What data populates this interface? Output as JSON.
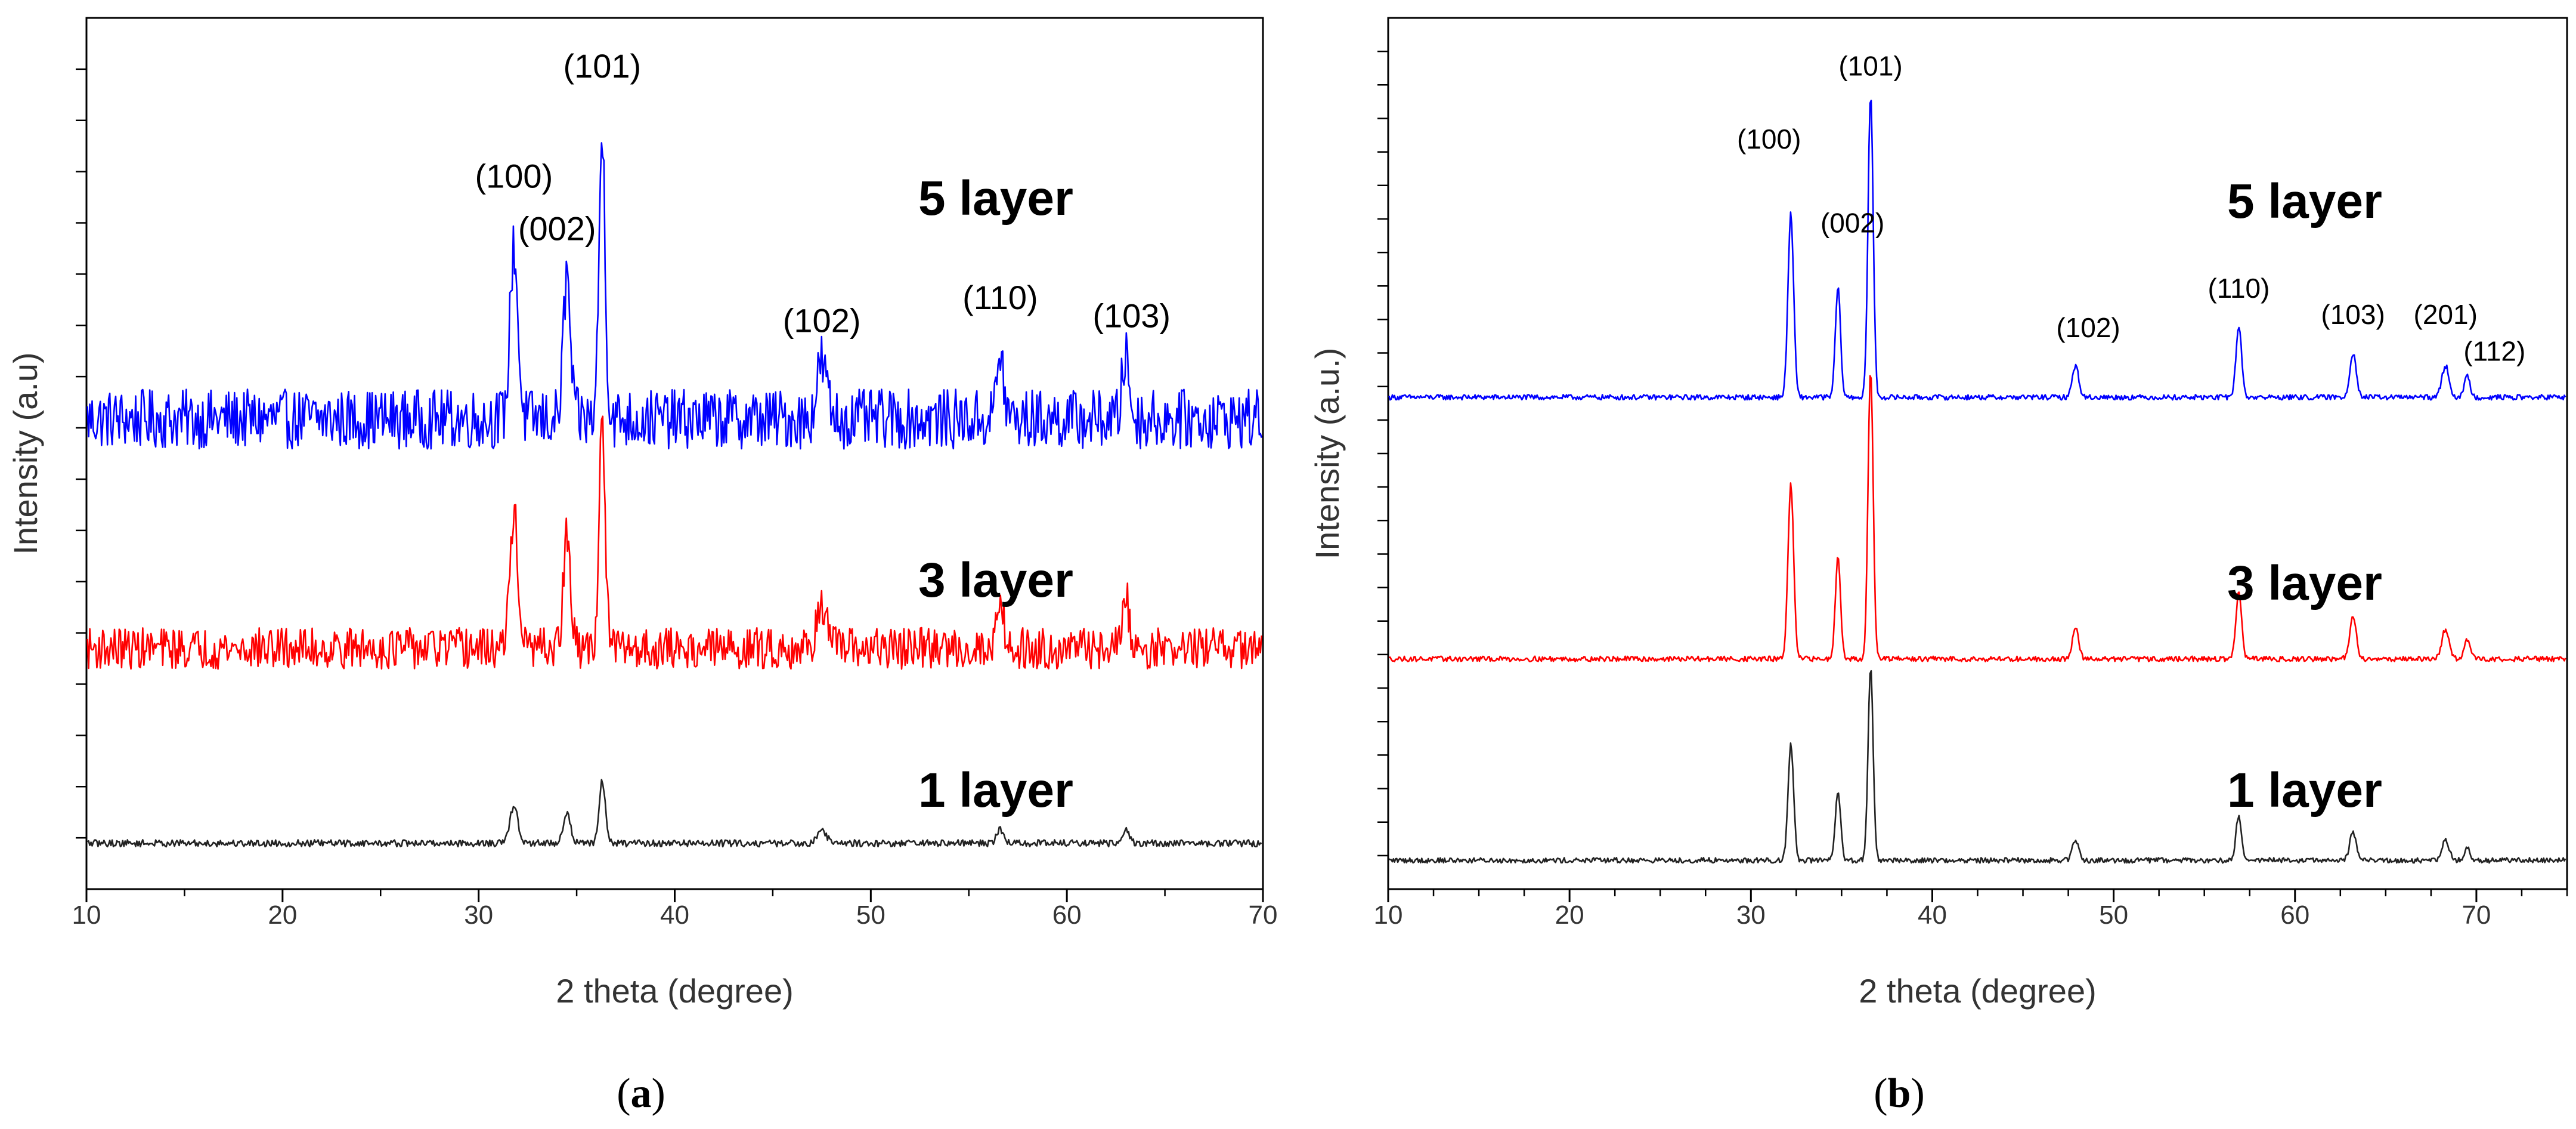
{
  "chart_data": [
    {
      "type": "line",
      "panel": "a",
      "caption_open": "(",
      "caption_letter": "a",
      "caption_close": ")",
      "xlabel": "2 theta (degree)",
      "ylabel": "Intensity (a.u)",
      "xlim": [
        10,
        70
      ],
      "x_ticks": [
        "10",
        "20",
        "30",
        "40",
        "50",
        "60",
        "70"
      ],
      "noise_level": "high",
      "series": [
        {
          "name": "5 layer",
          "label": "5 layer",
          "color": "#0000ff",
          "baseline": 0.0,
          "noise": 0.13,
          "peak_scale": 1.0
        },
        {
          "name": "3 layer",
          "label": "3 layer",
          "color": "#ff0000",
          "baseline": -1.0,
          "noise": 0.09,
          "peak_scale": 0.8
        },
        {
          "name": "1 layer",
          "label": "1 layer",
          "color": "#222222",
          "baseline": -1.85,
          "noise": 0.015,
          "peak_scale": 0.22
        }
      ],
      "peaks": [
        {
          "x": 31.8,
          "height": 0.75,
          "width": 0.28
        },
        {
          "x": 34.5,
          "height": 0.62,
          "width": 0.25
        },
        {
          "x": 36.3,
          "height": 1.24,
          "width": 0.22
        },
        {
          "x": 47.5,
          "height": 0.25,
          "width": 0.35
        },
        {
          "x": 56.6,
          "height": 0.28,
          "width": 0.25
        },
        {
          "x": 63.0,
          "height": 0.28,
          "width": 0.25
        }
      ],
      "annotations": [
        {
          "text": "(100)",
          "x": 31.8,
          "y": 1.01
        },
        {
          "text": "(002)",
          "x": 34.0,
          "y": 0.78
        },
        {
          "text": "(101)",
          "x": 36.3,
          "y": 1.49
        },
        {
          "text": "(102)",
          "x": 47.5,
          "y": 0.38
        },
        {
          "text": "(110)",
          "x": 56.6,
          "y": 0.48
        },
        {
          "text": "(103)",
          "x": 63.3,
          "y": 0.4
        }
      ],
      "ylim": [
        -2.05,
        1.75
      ]
    },
    {
      "type": "line",
      "panel": "b",
      "caption_open": "(",
      "caption_letter": "b",
      "caption_close": ")",
      "xlabel": "2 theta (degree)",
      "ylabel": "Intensity (a.u.)",
      "xlim": [
        10,
        75
      ],
      "x_ticks": [
        "10",
        "20",
        "30",
        "40",
        "50",
        "60",
        "70"
      ],
      "noise_level": "low",
      "series": [
        {
          "name": "5 layer",
          "label": "5 layer",
          "color": "#0000ff",
          "baseline": 0.0,
          "noise": 0.01,
          "peak_scale": 1.0
        },
        {
          "name": "3 layer",
          "label": "3 layer",
          "color": "#ff0000",
          "baseline": -1.0,
          "noise": 0.01,
          "peak_scale": 0.95
        },
        {
          "name": "1 layer",
          "label": "1 layer",
          "color": "#222222",
          "baseline": -1.77,
          "noise": 0.01,
          "peak_scale": 0.63
        }
      ],
      "peaks": [
        {
          "x": 32.2,
          "height": 0.7,
          "width": 0.22
        },
        {
          "x": 34.8,
          "height": 0.42,
          "width": 0.2
        },
        {
          "x": 36.6,
          "height": 1.16,
          "width": 0.2
        },
        {
          "x": 47.9,
          "height": 0.12,
          "width": 0.25
        },
        {
          "x": 56.9,
          "height": 0.27,
          "width": 0.22
        },
        {
          "x": 63.2,
          "height": 0.17,
          "width": 0.25
        },
        {
          "x": 68.3,
          "height": 0.12,
          "width": 0.28
        },
        {
          "x": 69.5,
          "height": 0.08,
          "width": 0.22
        }
      ],
      "annotations": [
        {
          "text": "(100)",
          "x": 31.0,
          "y": 0.95
        },
        {
          "text": "(002)",
          "x": 35.6,
          "y": 0.63
        },
        {
          "text": "(101)",
          "x": 36.6,
          "y": 1.23
        },
        {
          "text": "(102)",
          "x": 48.6,
          "y": 0.23
        },
        {
          "text": "(110)",
          "x": 56.9,
          "y": 0.38
        },
        {
          "text": "(103)",
          "x": 63.2,
          "y": 0.28
        },
        {
          "text": "(201)",
          "x": 68.3,
          "y": 0.28
        },
        {
          "text": "(112)",
          "x": 71.0,
          "y": 0.14
        }
      ],
      "ylim": [
        -1.88,
        1.45
      ]
    }
  ]
}
